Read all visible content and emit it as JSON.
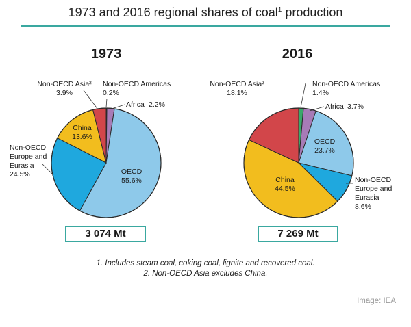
{
  "header": {
    "title_main": "1973 and 2016 regional shares of coal",
    "title_sup": "1",
    "title_end": " production"
  },
  "chart_data": [
    {
      "type": "pie",
      "title": "1973",
      "total": "3 074 Mt",
      "slices": [
        {
          "name": "OECD",
          "value": 55.6,
          "value_label": "55.6%",
          "color": "#8ec9ea"
        },
        {
          "name": "Non-OECD Europe and Eurasia",
          "value": 24.5,
          "value_label": "24.5%",
          "color": "#1fa8de"
        },
        {
          "name": "China",
          "value": 13.6,
          "value_label": "13.6%",
          "color": "#f2bd1e"
        },
        {
          "name": "Non-OECD Asia²",
          "value": 3.9,
          "value_label": "3.9%",
          "color": "#d2464a"
        },
        {
          "name": "Non-OECD Americas",
          "value": 0.2,
          "value_label": "0.2%",
          "color": "#3aa86a"
        },
        {
          "name": "Africa",
          "value": 2.2,
          "value_label": "2.2%",
          "color": "#a77bb7"
        }
      ]
    },
    {
      "type": "pie",
      "title": "2016",
      "total": "7 269 Mt",
      "slices": [
        {
          "name": "OECD",
          "value": 23.7,
          "value_label": "23.7%",
          "color": "#8ec9ea"
        },
        {
          "name": "Non-OECD Europe and Eurasia",
          "value": 8.6,
          "value_label": "8.6%",
          "color": "#1fa8de"
        },
        {
          "name": "China",
          "value": 44.5,
          "value_label": "44.5%",
          "color": "#f2bd1e"
        },
        {
          "name": "Non-OECD Asia²",
          "value": 18.1,
          "value_label": "18.1%",
          "color": "#d2464a"
        },
        {
          "name": "Non-OECD Americas",
          "value": 1.4,
          "value_label": "1.4%",
          "color": "#3aa86a"
        },
        {
          "name": "Africa",
          "value": 3.7,
          "value_label": "3.7%",
          "color": "#a77bb7"
        }
      ]
    }
  ],
  "footnotes": [
    "1. Includes steam coal, coking coal, lignite and recovered coal.",
    "2. Non-OECD Asia excludes China."
  ],
  "credit": "Image: IEA"
}
